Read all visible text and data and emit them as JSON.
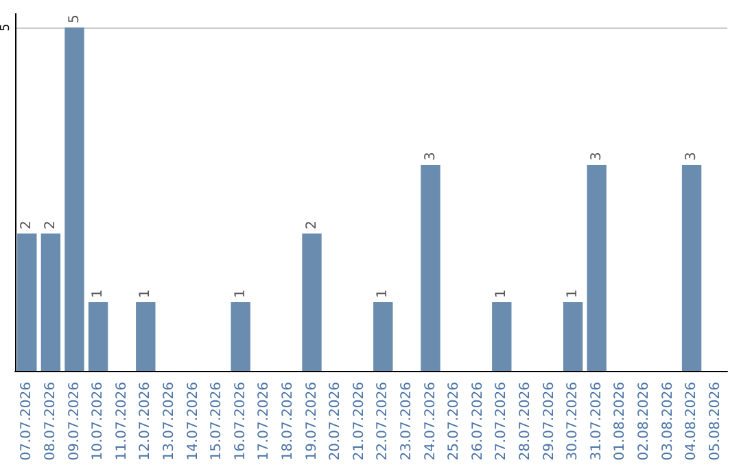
{
  "chart_data": {
    "type": "bar",
    "categories": [
      "07.07.2026",
      "08.07.2026",
      "09.07.2026",
      "10.07.2026",
      "11.07.2026",
      "12.07.2026",
      "13.07.2026",
      "14.07.2026",
      "15.07.2026",
      "16.07.2026",
      "17.07.2026",
      "18.07.2026",
      "19.07.2026",
      "20.07.2026",
      "21.07.2026",
      "22.07.2026",
      "23.07.2026",
      "24.07.2026",
      "25.07.2026",
      "26.07.2026",
      "27.07.2026",
      "28.07.2026",
      "29.07.2026",
      "30.07.2026",
      "31.07.2026",
      "01.08.2026",
      "02.08.2026",
      "03.08.2026",
      "04.08.2026",
      "05.08.2026"
    ],
    "values": [
      2,
      2,
      5,
      1,
      0,
      1,
      0,
      0,
      0,
      1,
      0,
      0,
      2,
      0,
      0,
      1,
      0,
      3,
      0,
      0,
      1,
      0,
      0,
      1,
      3,
      0,
      0,
      0,
      3,
      0
    ],
    "value_labels": [
      "2",
      "2",
      "5",
      "1",
      null,
      "1",
      null,
      null,
      null,
      "1",
      null,
      null,
      "2",
      null,
      null,
      "1",
      null,
      "3",
      null,
      null,
      "1",
      null,
      null,
      "1",
      "3",
      null,
      null,
      null,
      "3",
      null
    ],
    "color": "#6a8caf",
    "ylim": [
      0,
      5.2
    ],
    "yticks": [
      {
        "value": 0,
        "label": null
      },
      5
    ],
    "grid": "y"
  }
}
